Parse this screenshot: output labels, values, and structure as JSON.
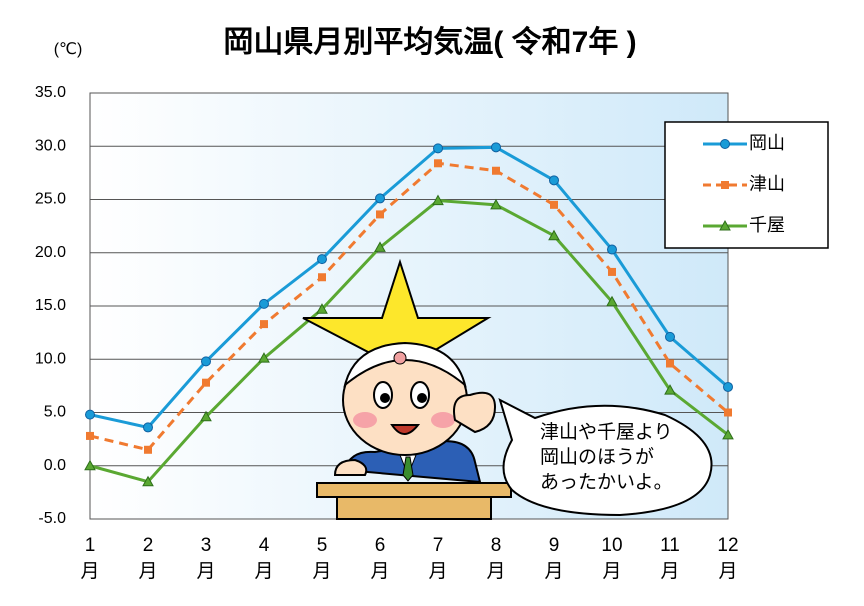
{
  "chart_data": {
    "type": "line",
    "title": "岡山県月別平均気温( 令和7年 )",
    "y_label": "(℃)",
    "categories": [
      "1月",
      "2月",
      "3月",
      "4月",
      "5月",
      "6月",
      "7月",
      "8月",
      "9月",
      "10月",
      "11月",
      "12月"
    ],
    "series": [
      {
        "name": "岡山",
        "color": "#1a9bd7",
        "marker": "circle",
        "dash": false,
        "values": [
          4.8,
          3.6,
          9.8,
          15.2,
          19.4,
          25.1,
          29.8,
          29.9,
          26.8,
          20.3,
          12.1,
          7.4
        ]
      },
      {
        "name": "津山",
        "color": "#f07a30",
        "marker": "square",
        "dash": true,
        "values": [
          2.8,
          1.5,
          7.8,
          13.3,
          17.7,
          23.6,
          28.4,
          27.7,
          24.5,
          18.2,
          9.6,
          5.0
        ]
      },
      {
        "name": "千屋",
        "color": "#5aa832",
        "marker": "triangle",
        "dash": false,
        "values": [
          0.0,
          -1.5,
          4.6,
          10.1,
          14.7,
          20.5,
          24.9,
          24.5,
          21.6,
          15.4,
          7.1,
          2.9
        ]
      }
    ],
    "ylim": [
      -5,
      35
    ],
    "yticks": [
      {
        "value": -5,
        "label": "-5.0"
      },
      {
        "value": 0,
        "label": "0.0"
      },
      {
        "value": 5,
        "label": "5.0"
      },
      {
        "value": 10,
        "label": "10.0"
      },
      {
        "value": 15,
        "label": "15.0"
      },
      {
        "value": 20,
        "label": "20.0"
      },
      {
        "value": 25,
        "label": "25.0"
      },
      {
        "value": 30,
        "label": "30.0"
      },
      {
        "value": 35,
        "label": "35.0"
      }
    ],
    "grid": true,
    "legend": "upper right",
    "annotation": [
      "津山や千屋より",
      "岡山のほうが",
      "あったかいよ。"
    ]
  }
}
